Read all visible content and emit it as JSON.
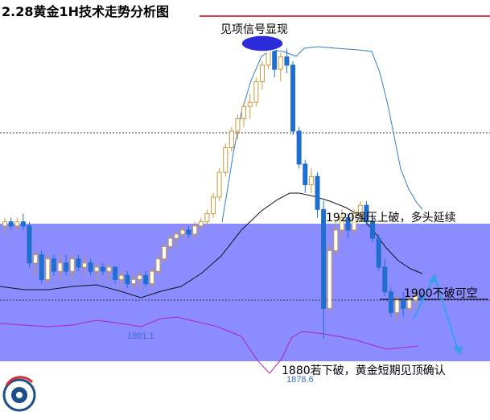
{
  "chart_data": {
    "type": "candlestick",
    "title": "2.28黄金1H技术走势分析图",
    "price_range": [
      1872,
      1953
    ],
    "levels": {
      "support": 1880,
      "resistance_mid": 1900,
      "resistance_top": 1920,
      "upper_dotted": 1941
    },
    "annotations": {
      "top_signal": "见项信号显现",
      "upper_zone": "1920强压上破，多头延续",
      "mid_level": "1900不破可空",
      "lower_zone": "1880若下破，黄金短期见顶确认"
    },
    "price_labels": [
      {
        "text": "1891.1",
        "value": 1891.1
      },
      {
        "text": "1878.6",
        "value": 1878.6
      }
    ],
    "candles": [
      [
        1906,
        1908,
        1904,
        1907
      ],
      [
        1907,
        1908,
        1905,
        1906
      ],
      [
        1906,
        1908,
        1905,
        1907
      ],
      [
        1907,
        1909,
        1905,
        1906
      ],
      [
        1906,
        1907,
        1896,
        1897
      ],
      [
        1897,
        1900,
        1894,
        1899
      ],
      [
        1899,
        1900,
        1892,
        1893
      ],
      [
        1893,
        1899,
        1892,
        1898
      ],
      [
        1898,
        1899,
        1894,
        1895
      ],
      [
        1895,
        1899,
        1893,
        1897
      ],
      [
        1897,
        1899,
        1894,
        1895
      ],
      [
        1895,
        1899,
        1893,
        1898
      ],
      [
        1898,
        1899,
        1895,
        1896
      ],
      [
        1896,
        1899,
        1894,
        1897
      ],
      [
        1897,
        1898,
        1894,
        1895
      ],
      [
        1895,
        1897,
        1893,
        1896
      ],
      [
        1896,
        1897,
        1894,
        1895
      ],
      [
        1895,
        1897,
        1893,
        1896
      ],
      [
        1896,
        1896,
        1892,
        1893
      ],
      [
        1893,
        1895,
        1891,
        1894
      ],
      [
        1894,
        1895,
        1891,
        1892
      ],
      [
        1892,
        1894,
        1891,
        1893
      ],
      [
        1893,
        1895,
        1891,
        1894
      ],
      [
        1894,
        1895,
        1891.1,
        1892
      ],
      [
        1892,
        1896,
        1891,
        1895
      ],
      [
        1895,
        1899,
        1894,
        1898
      ],
      [
        1898,
        1902,
        1897,
        1901
      ],
      [
        1901,
        1904,
        1900,
        1903
      ],
      [
        1903,
        1905,
        1901,
        1904
      ],
      [
        1904,
        1906,
        1903,
        1905
      ],
      [
        1905,
        1906,
        1903,
        1904
      ],
      [
        1904,
        1907,
        1903,
        1906
      ],
      [
        1906,
        1908,
        1905,
        1907
      ],
      [
        1907,
        1910,
        1906,
        1909
      ],
      [
        1909,
        1914,
        1908,
        1913
      ],
      [
        1913,
        1920,
        1912,
        1919
      ],
      [
        1919,
        1926,
        1918,
        1925
      ],
      [
        1925,
        1930,
        1924,
        1929
      ],
      [
        1929,
        1933,
        1927,
        1932
      ],
      [
        1932,
        1936,
        1930,
        1935
      ],
      [
        1935,
        1938,
        1932,
        1936
      ],
      [
        1936,
        1942,
        1935,
        1941
      ],
      [
        1941,
        1946,
        1939,
        1945
      ],
      [
        1945,
        1950,
        1944,
        1949
      ],
      [
        1949,
        1951,
        1942,
        1944
      ],
      [
        1944,
        1948,
        1941,
        1947
      ],
      [
        1947,
        1949,
        1943,
        1945
      ],
      [
        1945,
        1946,
        1928,
        1929
      ],
      [
        1929,
        1930,
        1920,
        1921
      ],
      [
        1921,
        1922,
        1914,
        1916
      ],
      [
        1916,
        1920,
        1914,
        1918
      ],
      [
        1918,
        1919,
        1908,
        1910
      ],
      [
        1910,
        1912,
        1878.6,
        1886
      ],
      [
        1886,
        1902,
        1885,
        1900
      ],
      [
        1900,
        1907,
        1899,
        1905
      ],
      [
        1905,
        1910,
        1903,
        1908
      ],
      [
        1908,
        1909,
        1903,
        1905
      ],
      [
        1905,
        1910,
        1904,
        1909
      ],
      [
        1909,
        1912,
        1907,
        1911
      ],
      [
        1911,
        1912,
        1906,
        1907
      ],
      [
        1907,
        1908,
        1902,
        1903
      ],
      [
        1903,
        1904,
        1895,
        1896
      ],
      [
        1896,
        1898,
        1889,
        1890
      ],
      [
        1890,
        1891,
        1884,
        1885
      ],
      [
        1885,
        1889,
        1883,
        1888
      ],
      [
        1888,
        1890,
        1884,
        1886
      ],
      [
        1886,
        1889,
        1885,
        1888
      ],
      [
        1888,
        1890,
        1886,
        1889
      ],
      [
        1889,
        1890,
        1887,
        1888
      ]
    ]
  }
}
